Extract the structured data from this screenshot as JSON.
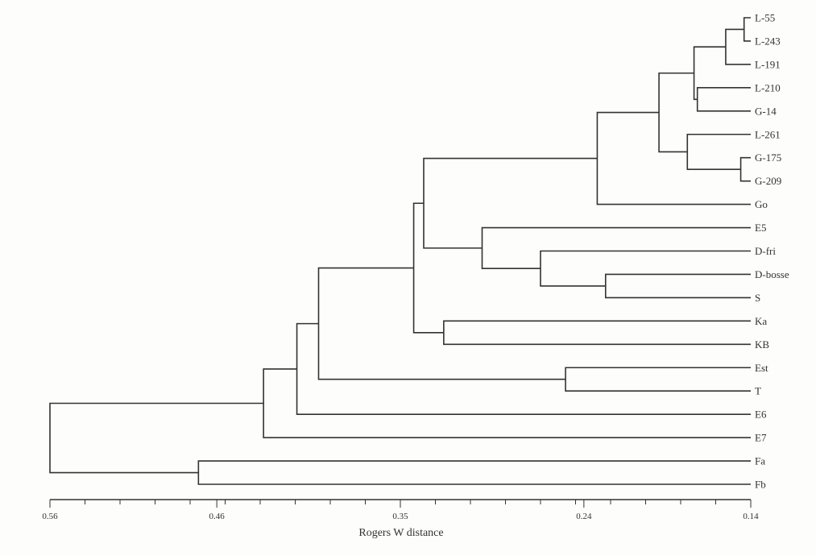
{
  "diagram": {
    "type": "dendrogram",
    "leaves": [
      "L-55",
      "L-243",
      "L-191",
      "L-210",
      "G-14",
      "L-261",
      "G-175",
      "G-209",
      "Go",
      "E5",
      "D-fri",
      "D-bosse",
      "S",
      "Ka",
      "KB",
      "Est",
      "T",
      "E6",
      "E7",
      "Fa",
      "Fb"
    ],
    "merges": [
      {
        "a": "L-55",
        "b": "L-243",
        "dist": 0.144,
        "id": "m1"
      },
      {
        "a": "m1",
        "b": "L-191",
        "dist": 0.155,
        "id": "m2"
      },
      {
        "a": "L-210",
        "b": "G-14",
        "dist": 0.172,
        "id": "m3"
      },
      {
        "a": "m2",
        "b": "m3",
        "dist": 0.174,
        "id": "m4"
      },
      {
        "a": "G-175",
        "b": "G-209",
        "dist": 0.146,
        "id": "m5"
      },
      {
        "a": "L-261",
        "b": "m5",
        "dist": 0.178,
        "id": "m6"
      },
      {
        "a": "m4",
        "b": "m6",
        "dist": 0.195,
        "id": "m7"
      },
      {
        "a": "m7",
        "b": "Go",
        "dist": 0.232,
        "id": "m8"
      },
      {
        "a": "D-bosse",
        "b": "S",
        "dist": 0.227,
        "id": "m9"
      },
      {
        "a": "D-fri",
        "b": "m9",
        "dist": 0.266,
        "id": "m10"
      },
      {
        "a": "E5",
        "b": "m10",
        "dist": 0.301,
        "id": "m11"
      },
      {
        "a": "m8",
        "b": "m11",
        "dist": 0.336,
        "id": "m12"
      },
      {
        "a": "Ka",
        "b": "KB",
        "dist": 0.324,
        "id": "m13"
      },
      {
        "a": "m12",
        "b": "m13",
        "dist": 0.342,
        "id": "m14"
      },
      {
        "a": "Est",
        "b": "T",
        "dist": 0.251,
        "id": "m15"
      },
      {
        "a": "m14",
        "b": "m15",
        "dist": 0.399,
        "id": "m16"
      },
      {
        "a": "m16",
        "b": "E6",
        "dist": 0.412,
        "id": "m17"
      },
      {
        "a": "m17",
        "b": "E7",
        "dist": 0.432,
        "id": "m18"
      },
      {
        "a": "Fa",
        "b": "Fb",
        "dist": 0.471,
        "id": "m19"
      },
      {
        "a": "m18",
        "b": "m19",
        "dist": 0.56,
        "id": "m20"
      }
    ]
  },
  "axis": {
    "title": "Rogers W distance",
    "min": 0.14,
    "max": 0.56,
    "tick_labels": [
      "0.56",
      "0.46",
      "0.35",
      "0.24",
      "0.14"
    ],
    "tick_values": [
      0.56,
      0.46,
      0.35,
      0.24,
      0.14
    ],
    "minor_tick_count": 20
  }
}
